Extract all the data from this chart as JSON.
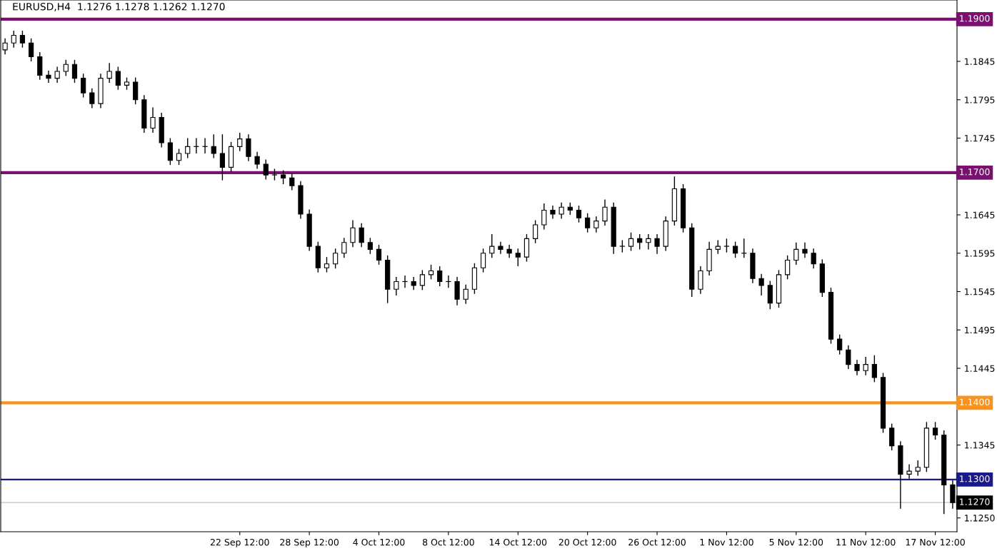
{
  "chart_data": {
    "type": "candlestick",
    "title": "EURUSD,H4  1.1276 1.1278 1.1262 1.1270",
    "categories": [
      null,
      null,
      null,
      null,
      null,
      null,
      null,
      null,
      null,
      null,
      null,
      null,
      null,
      null,
      null,
      null,
      null,
      null,
      null,
      null,
      null,
      null,
      null,
      null,
      null,
      null,
      null,
      "22 Sep 12:00",
      null,
      null,
      null,
      null,
      null,
      null,
      null,
      "28 Sep 12:00",
      null,
      null,
      null,
      null,
      null,
      null,
      null,
      "4 Oct 12:00",
      null,
      null,
      null,
      null,
      null,
      null,
      null,
      "8 Oct 12:00",
      null,
      null,
      null,
      null,
      null,
      null,
      null,
      "14 Oct 12:00",
      null,
      null,
      null,
      null,
      null,
      null,
      null,
      "20 Oct 12:00",
      null,
      null,
      null,
      null,
      null,
      null,
      null,
      "26 Oct 12:00",
      null,
      null,
      null,
      null,
      null,
      null,
      null,
      "1 Nov 12:00",
      null,
      null,
      null,
      null,
      null,
      null,
      null,
      "5 Nov 12:00",
      null,
      null,
      null,
      null,
      null,
      null,
      null,
      "11 Nov 12:00",
      null,
      null,
      null,
      null,
      null,
      null,
      null,
      "17 Nov 12:00",
      null,
      null
    ],
    "ohlc": [
      [
        1.186,
        1.1875,
        1.1854,
        1.1869
      ],
      [
        1.1869,
        1.1885,
        1.1863,
        1.1879
      ],
      [
        1.1879,
        1.1885,
        1.1863,
        1.1869
      ],
      [
        1.1869,
        1.1875,
        1.1845,
        1.1851
      ],
      [
        1.1851,
        1.1857,
        1.1821,
        1.1827
      ],
      [
        1.1827,
        1.1833,
        1.1817,
        1.1823
      ],
      [
        1.1823,
        1.1838,
        1.1817,
        1.1832
      ],
      [
        1.1832,
        1.1847,
        1.1826,
        1.1841
      ],
      [
        1.1841,
        1.1847,
        1.1817,
        1.1823
      ],
      [
        1.1823,
        1.1829,
        1.1798,
        1.1804
      ],
      [
        1.1804,
        1.181,
        1.1784,
        1.179
      ],
      [
        1.179,
        1.1829,
        1.1784,
        1.1823
      ],
      [
        1.1823,
        1.1843,
        1.1817,
        1.1832
      ],
      [
        1.1832,
        1.1838,
        1.1808,
        1.1814
      ],
      [
        1.1814,
        1.1824,
        1.1808,
        1.1818
      ],
      [
        1.1818,
        1.1824,
        1.1789,
        1.1795
      ],
      [
        1.1795,
        1.1801,
        1.1752,
        1.1758
      ],
      [
        1.1758,
        1.1785,
        1.1752,
        1.1772
      ],
      [
        1.1772,
        1.1778,
        1.1733,
        1.1739
      ],
      [
        1.1739,
        1.1745,
        1.171,
        1.1716
      ],
      [
        1.1716,
        1.1731,
        1.171,
        1.1725
      ],
      [
        1.1725,
        1.1745,
        1.1719,
        1.1734
      ],
      [
        1.1734,
        1.1745,
        1.1725,
        1.1734
      ],
      [
        1.1734,
        1.1745,
        1.1725,
        1.1734
      ],
      [
        1.1734,
        1.175,
        1.1719,
        1.1725
      ],
      [
        1.1725,
        1.175,
        1.169,
        1.1707
      ],
      [
        1.1707,
        1.174,
        1.1701,
        1.1734
      ],
      [
        1.1734,
        1.1752,
        1.1728,
        1.1744
      ],
      [
        1.1744,
        1.175,
        1.1715,
        1.1721
      ],
      [
        1.1721,
        1.1727,
        1.1705,
        1.1711
      ],
      [
        1.1711,
        1.1717,
        1.1691,
        1.1697
      ],
      [
        1.1697,
        1.1705,
        1.169,
        1.1697
      ],
      [
        1.1697,
        1.1703,
        1.1685,
        1.1693
      ],
      [
        1.1693,
        1.1699,
        1.1677,
        1.1683
      ],
      [
        1.1683,
        1.1689,
        1.164,
        1.1646
      ],
      [
        1.1646,
        1.1652,
        1.1598,
        1.1604
      ],
      [
        1.1604,
        1.161,
        1.157,
        1.1576
      ],
      [
        1.1576,
        1.159,
        1.157,
        1.1581
      ],
      [
        1.1581,
        1.1601,
        1.1575,
        1.1595
      ],
      [
        1.1595,
        1.1615,
        1.1589,
        1.1609
      ],
      [
        1.1609,
        1.1638,
        1.1603,
        1.1628
      ],
      [
        1.1628,
        1.1634,
        1.1603,
        1.1609
      ],
      [
        1.1609,
        1.1615,
        1.1594,
        1.16
      ],
      [
        1.16,
        1.1606,
        1.158,
        1.1586
      ],
      [
        1.1586,
        1.1592,
        1.153,
        1.1548
      ],
      [
        1.1548,
        1.1564,
        1.154,
        1.1558
      ],
      [
        1.1558,
        1.1566,
        1.155,
        1.1558
      ],
      [
        1.1558,
        1.1564,
        1.1547,
        1.1553
      ],
      [
        1.1553,
        1.1573,
        1.1547,
        1.1567
      ],
      [
        1.1567,
        1.158,
        1.1561,
        1.1572
      ],
      [
        1.1572,
        1.1578,
        1.1552,
        1.1558
      ],
      [
        1.1558,
        1.1566,
        1.155,
        1.1558
      ],
      [
        1.1558,
        1.1564,
        1.1527,
        1.1535
      ],
      [
        1.1535,
        1.1554,
        1.1529,
        1.1548
      ],
      [
        1.1548,
        1.1582,
        1.1542,
        1.1576
      ],
      [
        1.1576,
        1.1601,
        1.157,
        1.1595
      ],
      [
        1.1595,
        1.162,
        1.1589,
        1.1604
      ],
      [
        1.1604,
        1.161,
        1.1594,
        1.16
      ],
      [
        1.16,
        1.1606,
        1.1589,
        1.1595
      ],
      [
        1.1595,
        1.1601,
        1.1578,
        1.159
      ],
      [
        1.159,
        1.162,
        1.1584,
        1.1614
      ],
      [
        1.1614,
        1.1638,
        1.1608,
        1.1632
      ],
      [
        1.1632,
        1.166,
        1.1626,
        1.1651
      ],
      [
        1.1651,
        1.1657,
        1.164,
        1.1646
      ],
      [
        1.1646,
        1.1661,
        1.164,
        1.1655
      ],
      [
        1.1655,
        1.1661,
        1.1645,
        1.1651
      ],
      [
        1.1651,
        1.1657,
        1.1635,
        1.1641
      ],
      [
        1.1641,
        1.1647,
        1.1622,
        1.1628
      ],
      [
        1.1628,
        1.1643,
        1.1622,
        1.1637
      ],
      [
        1.1637,
        1.1665,
        1.1631,
        1.1655
      ],
      [
        1.1655,
        1.1661,
        1.1594,
        1.1604
      ],
      [
        1.1604,
        1.1612,
        1.1596,
        1.1604
      ],
      [
        1.1604,
        1.1622,
        1.1598,
        1.1614
      ],
      [
        1.1614,
        1.162,
        1.16,
        1.1609
      ],
      [
        1.1609,
        1.162,
        1.16,
        1.1614
      ],
      [
        1.1614,
        1.162,
        1.1594,
        1.1604
      ],
      [
        1.1604,
        1.1643,
        1.1598,
        1.1637
      ],
      [
        1.1637,
        1.1695,
        1.1631,
        1.1679
      ],
      [
        1.1679,
        1.1685,
        1.1622,
        1.1628
      ],
      [
        1.1628,
        1.1634,
        1.1538,
        1.1548
      ],
      [
        1.1548,
        1.1578,
        1.1542,
        1.1572
      ],
      [
        1.1572,
        1.161,
        1.1566,
        1.16
      ],
      [
        1.16,
        1.1612,
        1.1594,
        1.1604
      ],
      [
        1.1604,
        1.1614,
        1.1596,
        1.1604
      ],
      [
        1.1604,
        1.161,
        1.1589,
        1.1595
      ],
      [
        1.1595,
        1.1614,
        1.1589,
        1.1595
      ],
      [
        1.1595,
        1.1601,
        1.1556,
        1.1562
      ],
      [
        1.1562,
        1.1568,
        1.154,
        1.1553
      ],
      [
        1.1553,
        1.1559,
        1.1522,
        1.153
      ],
      [
        1.153,
        1.1573,
        1.1524,
        1.1567
      ],
      [
        1.1567,
        1.1592,
        1.1561,
        1.1586
      ],
      [
        1.1586,
        1.1609,
        1.158,
        1.16
      ],
      [
        1.16,
        1.1609,
        1.1589,
        1.1595
      ],
      [
        1.1595,
        1.1601,
        1.1575,
        1.1581
      ],
      [
        1.1581,
        1.1587,
        1.1538,
        1.1544
      ],
      [
        1.1544,
        1.155,
        1.1477,
        1.1483
      ],
      [
        1.1483,
        1.1489,
        1.1463,
        1.1469
      ],
      [
        1.1469,
        1.1475,
        1.1444,
        1.145
      ],
      [
        1.145,
        1.1456,
        1.1436,
        1.1442
      ],
      [
        1.1442,
        1.146,
        1.1436,
        1.145
      ],
      [
        1.145,
        1.1462,
        1.1427,
        1.1433
      ],
      [
        1.1433,
        1.1439,
        1.1361,
        1.1367
      ],
      [
        1.1367,
        1.1373,
        1.1338,
        1.1344
      ],
      [
        1.1344,
        1.135,
        1.1262,
        1.1307
      ],
      [
        1.1307,
        1.132,
        1.1301,
        1.1311
      ],
      [
        1.1311,
        1.1325,
        1.1305,
        1.1316
      ],
      [
        1.1316,
        1.1375,
        1.131,
        1.1367
      ],
      [
        1.1367,
        1.1375,
        1.1352,
        1.1358
      ],
      [
        1.1358,
        1.1364,
        1.1255,
        1.1293
      ],
      [
        1.1293,
        1.1299,
        1.1262,
        1.127
      ]
    ],
    "ylim": [
      1.1232,
      1.1925
    ],
    "yticks": [
      {
        "value": 1.125,
        "label": "1.1250"
      },
      1.1345,
      1.1445,
      1.1495,
      1.1545,
      1.1595,
      1.1645,
      1.1745,
      1.1795,
      1.1845
    ],
    "ref_lines": [
      {
        "axis": "y",
        "value": 1.19,
        "label": "1.1900",
        "color": "#7b1070"
      },
      {
        "axis": "y",
        "value": 1.17,
        "label": "1.1700",
        "color": "#7b1070"
      },
      {
        "axis": "y",
        "value": 1.14,
        "label": "1.1400",
        "color": "#f7931e"
      },
      {
        "axis": "y",
        "value": 1.13,
        "label": "1.1300",
        "color": "#1a1a8c"
      },
      {
        "axis": "y",
        "value": 1.127,
        "label": "1.1270",
        "color": "#c0c0c0"
      }
    ],
    "grid": false
  }
}
